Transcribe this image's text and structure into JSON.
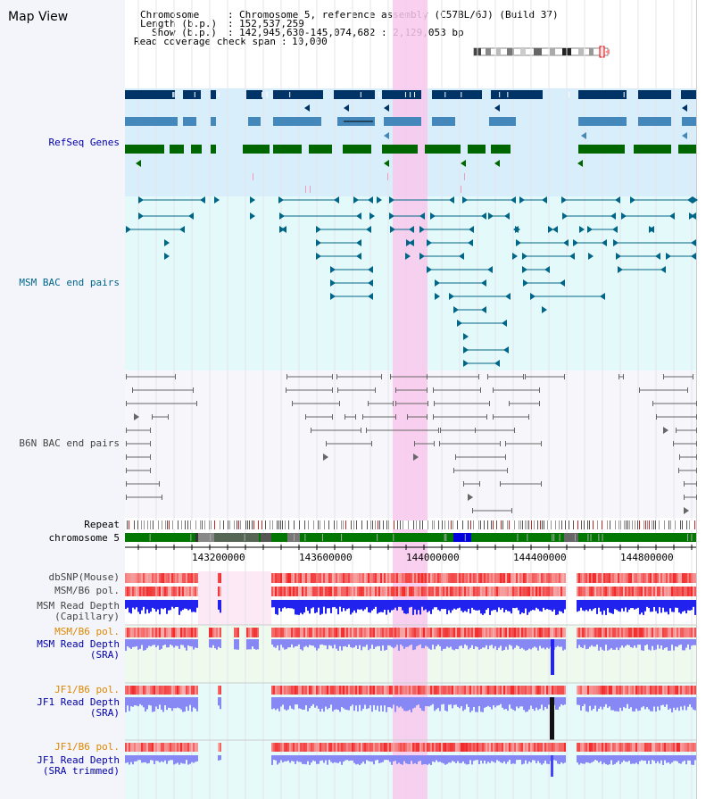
{
  "app": {
    "title": "Map View"
  },
  "header": {
    "chromosome_label": "Chromosome",
    "chromosome_value": "Chromosome 5, reference assembly (C57BL/6J) (Build 37)",
    "length_label": "Length (b.p.)",
    "length_value": "152,537,259",
    "show_label": "Show (b.p.)",
    "show_value": "142,945,630-145,074,682 : 2,129,053 bp",
    "coverage_label": "Read coverage check span",
    "coverage_value": "10,000"
  },
  "tracks": {
    "refseq": "RefSeq Genes",
    "msm_bac": "MSM BAC end pairs",
    "b6n_bac": "B6N BAC end pairs",
    "repeat": "Repeat",
    "chromosome": "chromosome 5",
    "dbsnp": "dbSNP(Mouse)",
    "msm_b6_pol_1": "MSM/B6 pol.",
    "msm_depth_cap_1": "MSM Read Depth",
    "msm_depth_cap_2": "(Capillary)",
    "msm_b6_pol_2": "MSM/B6 pol.",
    "msm_depth_sra_1": "MSM Read Depth",
    "msm_depth_sra_2": "(SRA)",
    "jf1_b6_pol_1": "JF1/B6 pol.",
    "jf1_depth_sra_1": "JF1 Read Depth",
    "jf1_depth_sra_2": "(SRA)",
    "jf1_b6_pol_2": "JF1/B6 pol.",
    "jf1_depth_trim_1": "JF1 Read Depth",
    "jf1_depth_trim_2": "(SRA trimmed)"
  },
  "axis": {
    "ticks": [
      "143200000",
      "143600000",
      "144000000",
      "144400000",
      "144800000"
    ]
  },
  "colors": {
    "refseq_dark": "#003366",
    "refseq_mid": "#4488bb",
    "refseq_green": "#006600",
    "msm_line": "#006688",
    "b6n_line": "#666666",
    "highlight": "#f8c8ec",
    "label_blue": "#0000aa",
    "label_teal": "#006688",
    "label_gray": "#444444",
    "label_orange": "#dd8800"
  }
}
